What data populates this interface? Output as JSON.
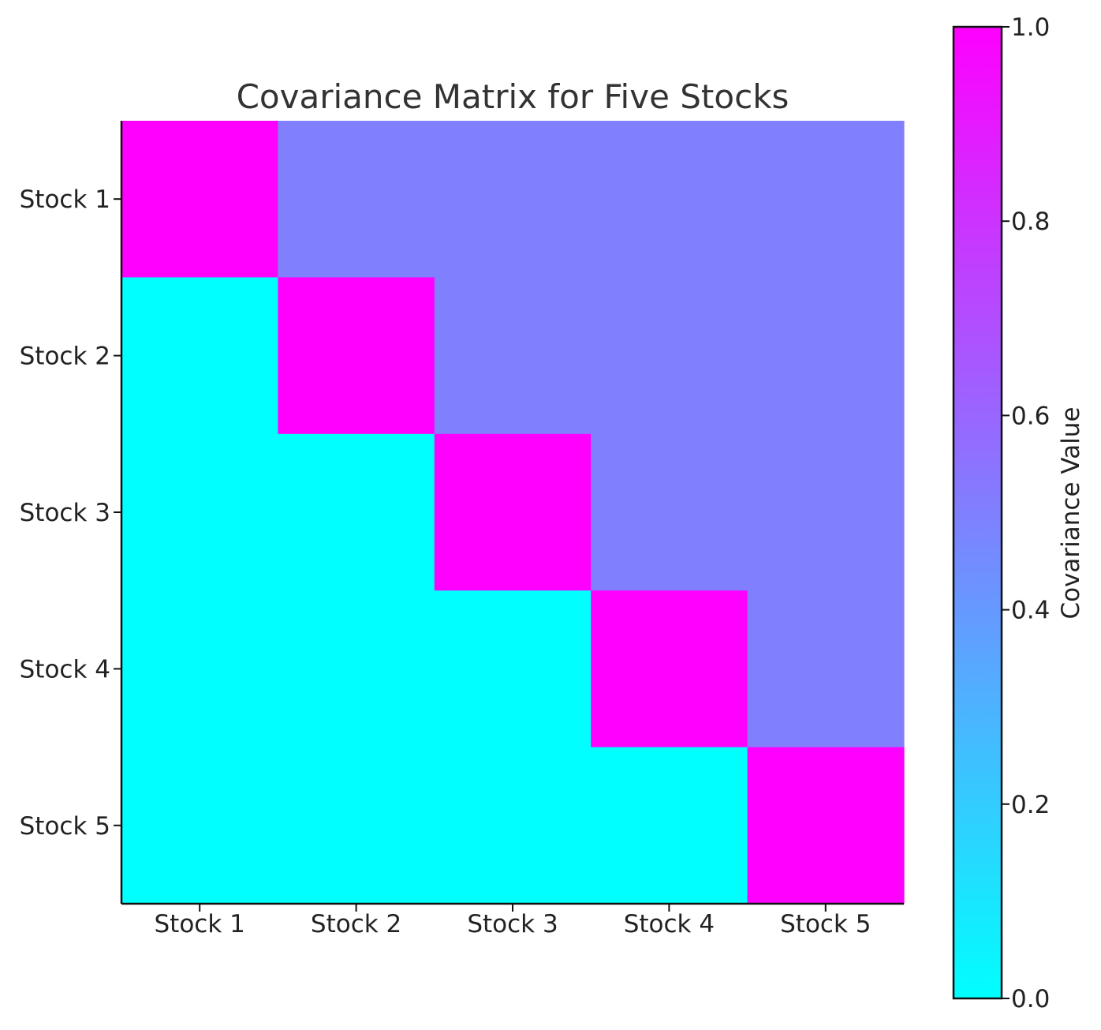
{
  "chart_data": {
    "type": "heatmap",
    "title": "Covariance Matrix for Five Stocks",
    "x_categories": [
      "Stock 1",
      "Stock 2",
      "Stock 3",
      "Stock 4",
      "Stock 5"
    ],
    "y_categories": [
      "Stock 1",
      "Stock 2",
      "Stock 3",
      "Stock 4",
      "Stock 5"
    ],
    "matrix": [
      [
        1.0,
        0.5,
        0.5,
        0.5,
        0.5
      ],
      [
        0.0,
        1.0,
        0.5,
        0.5,
        0.5
      ],
      [
        0.0,
        0.0,
        1.0,
        0.5,
        0.5
      ],
      [
        0.0,
        0.0,
        0.0,
        1.0,
        0.5
      ],
      [
        0.0,
        0.0,
        0.0,
        0.0,
        1.0
      ]
    ],
    "colorbar": {
      "label": "Covariance Value",
      "range": [
        0.0,
        1.0
      ],
      "ticks": [
        0.0,
        0.2,
        0.4,
        0.6,
        0.8,
        1.0
      ],
      "tick_labels": [
        "0.0",
        "0.2",
        "0.4",
        "0.6",
        "0.8",
        "1.0"
      ],
      "colormap": "cool",
      "color_low": "#00ffff",
      "color_high": "#ff00ff"
    }
  }
}
